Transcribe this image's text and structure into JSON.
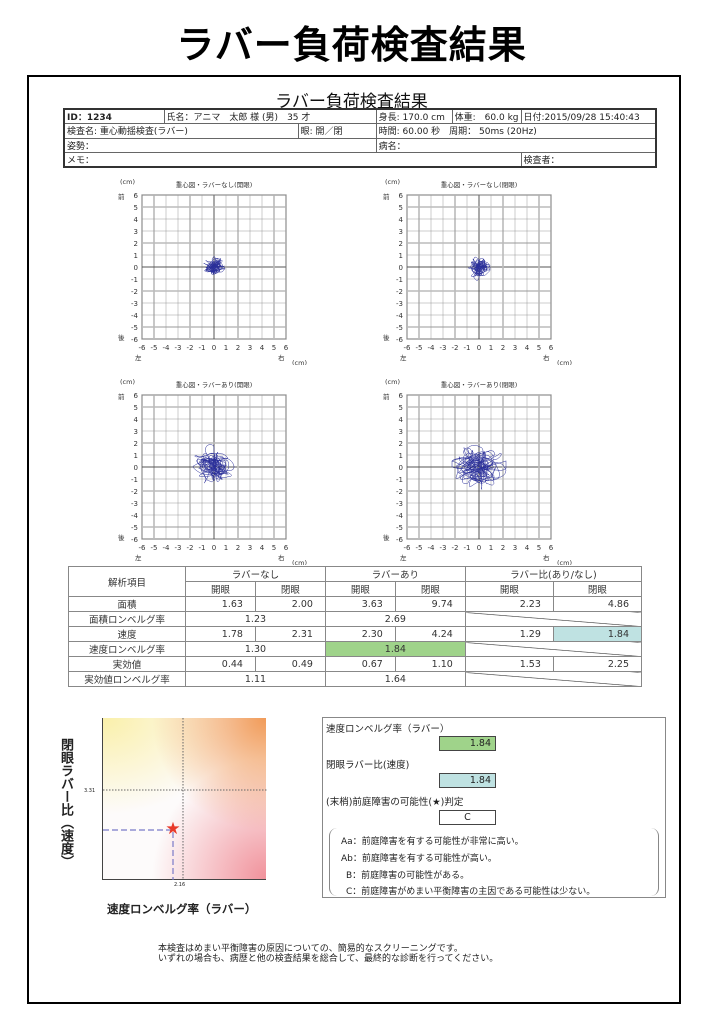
{
  "title": "ラバー負荷検査結果",
  "subtitle": "ラバー負荷検査結果",
  "info": {
    "id": "ID：1234",
    "name": "氏名：アニマ　太郎 様 (男)　35 才",
    "height": "身長: 170.0 cm",
    "weight": "体重:　60.0 kg",
    "date": "日付:2015/09/28 15:40:43",
    "exam": "検査名: 重心動揺検査(ラバー)",
    "eyes": "眼: 開／閉",
    "time": "時間: 60.00 秒　周期： 50ms (20Hz)",
    "posture": "姿勢：",
    "disease": "病名：",
    "memo": "メモ：",
    "examiner": "検査者："
  },
  "plots": [
    {
      "title": "重心図・ラバーなし(開眼)",
      "spread": 0.45
    },
    {
      "title": "重心図・ラバーなし(閉眼)",
      "spread": 0.5
    },
    {
      "title": "重心図・ラバーあり(開眼)",
      "spread": 0.8
    },
    {
      "title": "重心図・ラバーあり(閉眼)",
      "spread": 1.3
    }
  ],
  "plot_labels": {
    "unit_y": "(cm)",
    "unit_x": "(cm)",
    "front": "前",
    "back": "後",
    "left": "左",
    "right": "右",
    "ticks": [
      "-6",
      "-5",
      "-4",
      "-3",
      "-2",
      "-1",
      "0",
      "1",
      "2",
      "3",
      "4",
      "5",
      "6"
    ]
  },
  "results": {
    "header": "解析項目",
    "groups": [
      "ラバーなし",
      "ラバーあり",
      "ラバー比(あり/なし)"
    ],
    "open": "開眼",
    "closed": "閉眼",
    "rows": [
      {
        "label": "面積",
        "values": [
          "1.63",
          "2.00",
          "3.63",
          "9.74",
          "2.23",
          "4.86"
        ]
      },
      {
        "label": "面積ロンベルグ率",
        "values": [
          "1.23",
          "2.69"
        ]
      },
      {
        "label": "速度",
        "values": [
          "1.78",
          "2.31",
          "2.30",
          "4.24",
          "1.29",
          "1.84"
        ]
      },
      {
        "label": "速度ロンベルグ率",
        "values": [
          "1.30",
          "1.84"
        ]
      },
      {
        "label": "実効値",
        "values": [
          "0.44",
          "0.49",
          "0.67",
          "1.10",
          "1.53",
          "2.25"
        ]
      },
      {
        "label": "実効値ロンベルグ率",
        "values": [
          "1.11",
          "1.64"
        ]
      }
    ]
  },
  "quad": {
    "ylabel": "閉眼ラバー比（速度）",
    "xlabel": "速度ロンベルグ率（ラバー）",
    "x_threshold": "2.16",
    "y_threshold": "3.31",
    "star_x": 1.84,
    "star_y": 1.84
  },
  "judgement": {
    "romberg_label": "速度ロンベルグ率（ラバー）",
    "romberg_value": "1.84",
    "ratio_label": "閉眼ラバー比(速度)",
    "ratio_value": "1.84",
    "verdict_label": "(末梢)前庭障害の可能性(★)判定",
    "verdict": "C",
    "criteria": [
      "Aa：前庭障害を有する可能性が非常に高い。",
      "Ab：前庭障害を有する可能性が高い。",
      "B：前庭障害の可能性がある。",
      "C：前庭障害がめまい平衡障害の主因である可能性は少ない。"
    ]
  },
  "colors": {
    "green": "#9fd38a",
    "cyan": "#bfe2e2",
    "trace": "#2a2f9a",
    "star": "#e83a2a"
  },
  "footer": [
    "本検査はめまい平衡障害の原因についての、簡易的なスクリーニングです。",
    "いずれの場合も、病歴と他の検査結果を総合して、最終的な診断を行ってください。"
  ]
}
